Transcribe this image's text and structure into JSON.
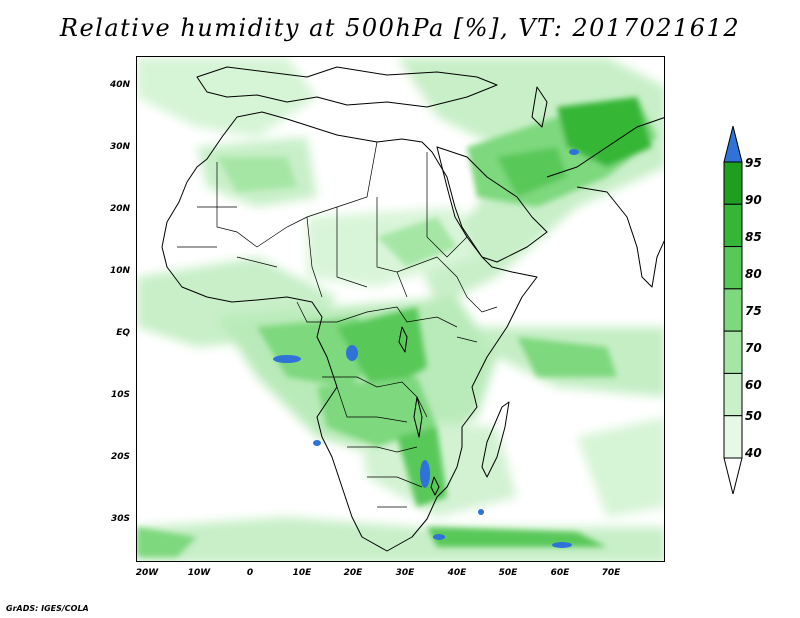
{
  "title": "Relative humidity at 500hPa [%], VT: 2017021612",
  "credit": "GrADS: IGES/COLA",
  "map": {
    "variable": "Relative humidity at 500hPa",
    "units": "%",
    "valid_time": "2017021612",
    "lon_range": [
      -23,
      80
    ],
    "lat_range": [
      -36,
      45
    ],
    "lat_ticks": [
      "40N",
      "30N",
      "20N",
      "10N",
      "EQ",
      "10S",
      "20S",
      "30S"
    ],
    "lon_ticks": [
      "20W",
      "10W",
      "0",
      "10E",
      "20E",
      "30E",
      "40E",
      "50E",
      "60E",
      "70E"
    ]
  },
  "colorbar": {
    "levels": [
      "40",
      "50",
      "60",
      "70",
      "75",
      "80",
      "85",
      "90",
      "95"
    ],
    "colors": [
      "#ffffff",
      "#e6f9e6",
      "#c9f0c9",
      "#a5e6a5",
      "#7ed87e",
      "#58c858",
      "#36b636",
      "#1f9f1f",
      "#2f72d8"
    ]
  }
}
